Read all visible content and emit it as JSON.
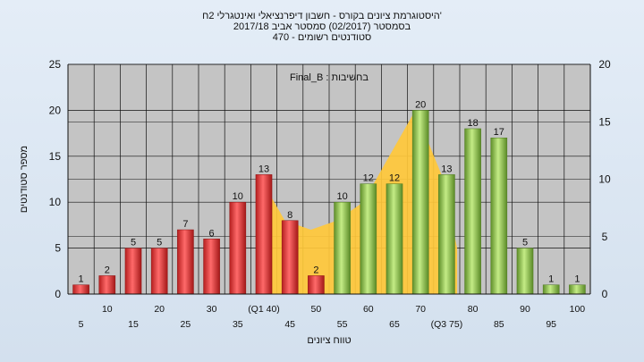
{
  "titles": [
    "היסטוגרמת ציונים בקורס - חשבון דיפרנציאלי ואינטגרלי 2ח'",
    "בסמסטר  (02/2017)  סמסטר אביב 2017/18",
    "סטודנטים רשומים - 470"
  ],
  "colors": {
    "fail": "#e23a3a",
    "pass": "#8fbf4a",
    "area": "#ffc83a",
    "plot_bg": "#c4c4c4"
  },
  "chart_data": {
    "type": "bar",
    "annotation": "בחשיבות : Final_B",
    "xlabel": "טווח ציונים",
    "ylabel": "מספר סטודנטים",
    "ylim": [
      0,
      25
    ],
    "y2lim": [
      0,
      20
    ],
    "yticks": [
      0,
      5,
      10,
      15,
      20,
      25
    ],
    "y2ticks": [
      0,
      5,
      10,
      15,
      20
    ],
    "categories": [
      "5",
      "10",
      "15",
      "20",
      "25",
      "30",
      "35",
      "(Q1 40)",
      "45",
      "50",
      "55",
      "60",
      "65",
      "70",
      "(Q3 75)",
      "80",
      "85",
      "90",
      "95",
      "100"
    ],
    "values": [
      1,
      2,
      5,
      5,
      7,
      6,
      10,
      13,
      8,
      2,
      10,
      12,
      12,
      20,
      13,
      18,
      17,
      5,
      1,
      1
    ],
    "pass_from_index": 10,
    "area_series": {
      "x_index": [
        7.3,
        8.3,
        9.3,
        10.3,
        11.3,
        12.3,
        13.3,
        14.3,
        14.9
      ],
      "values": [
        13,
        8,
        7,
        8,
        10,
        15,
        20,
        13,
        5
      ]
    },
    "grid": true
  }
}
